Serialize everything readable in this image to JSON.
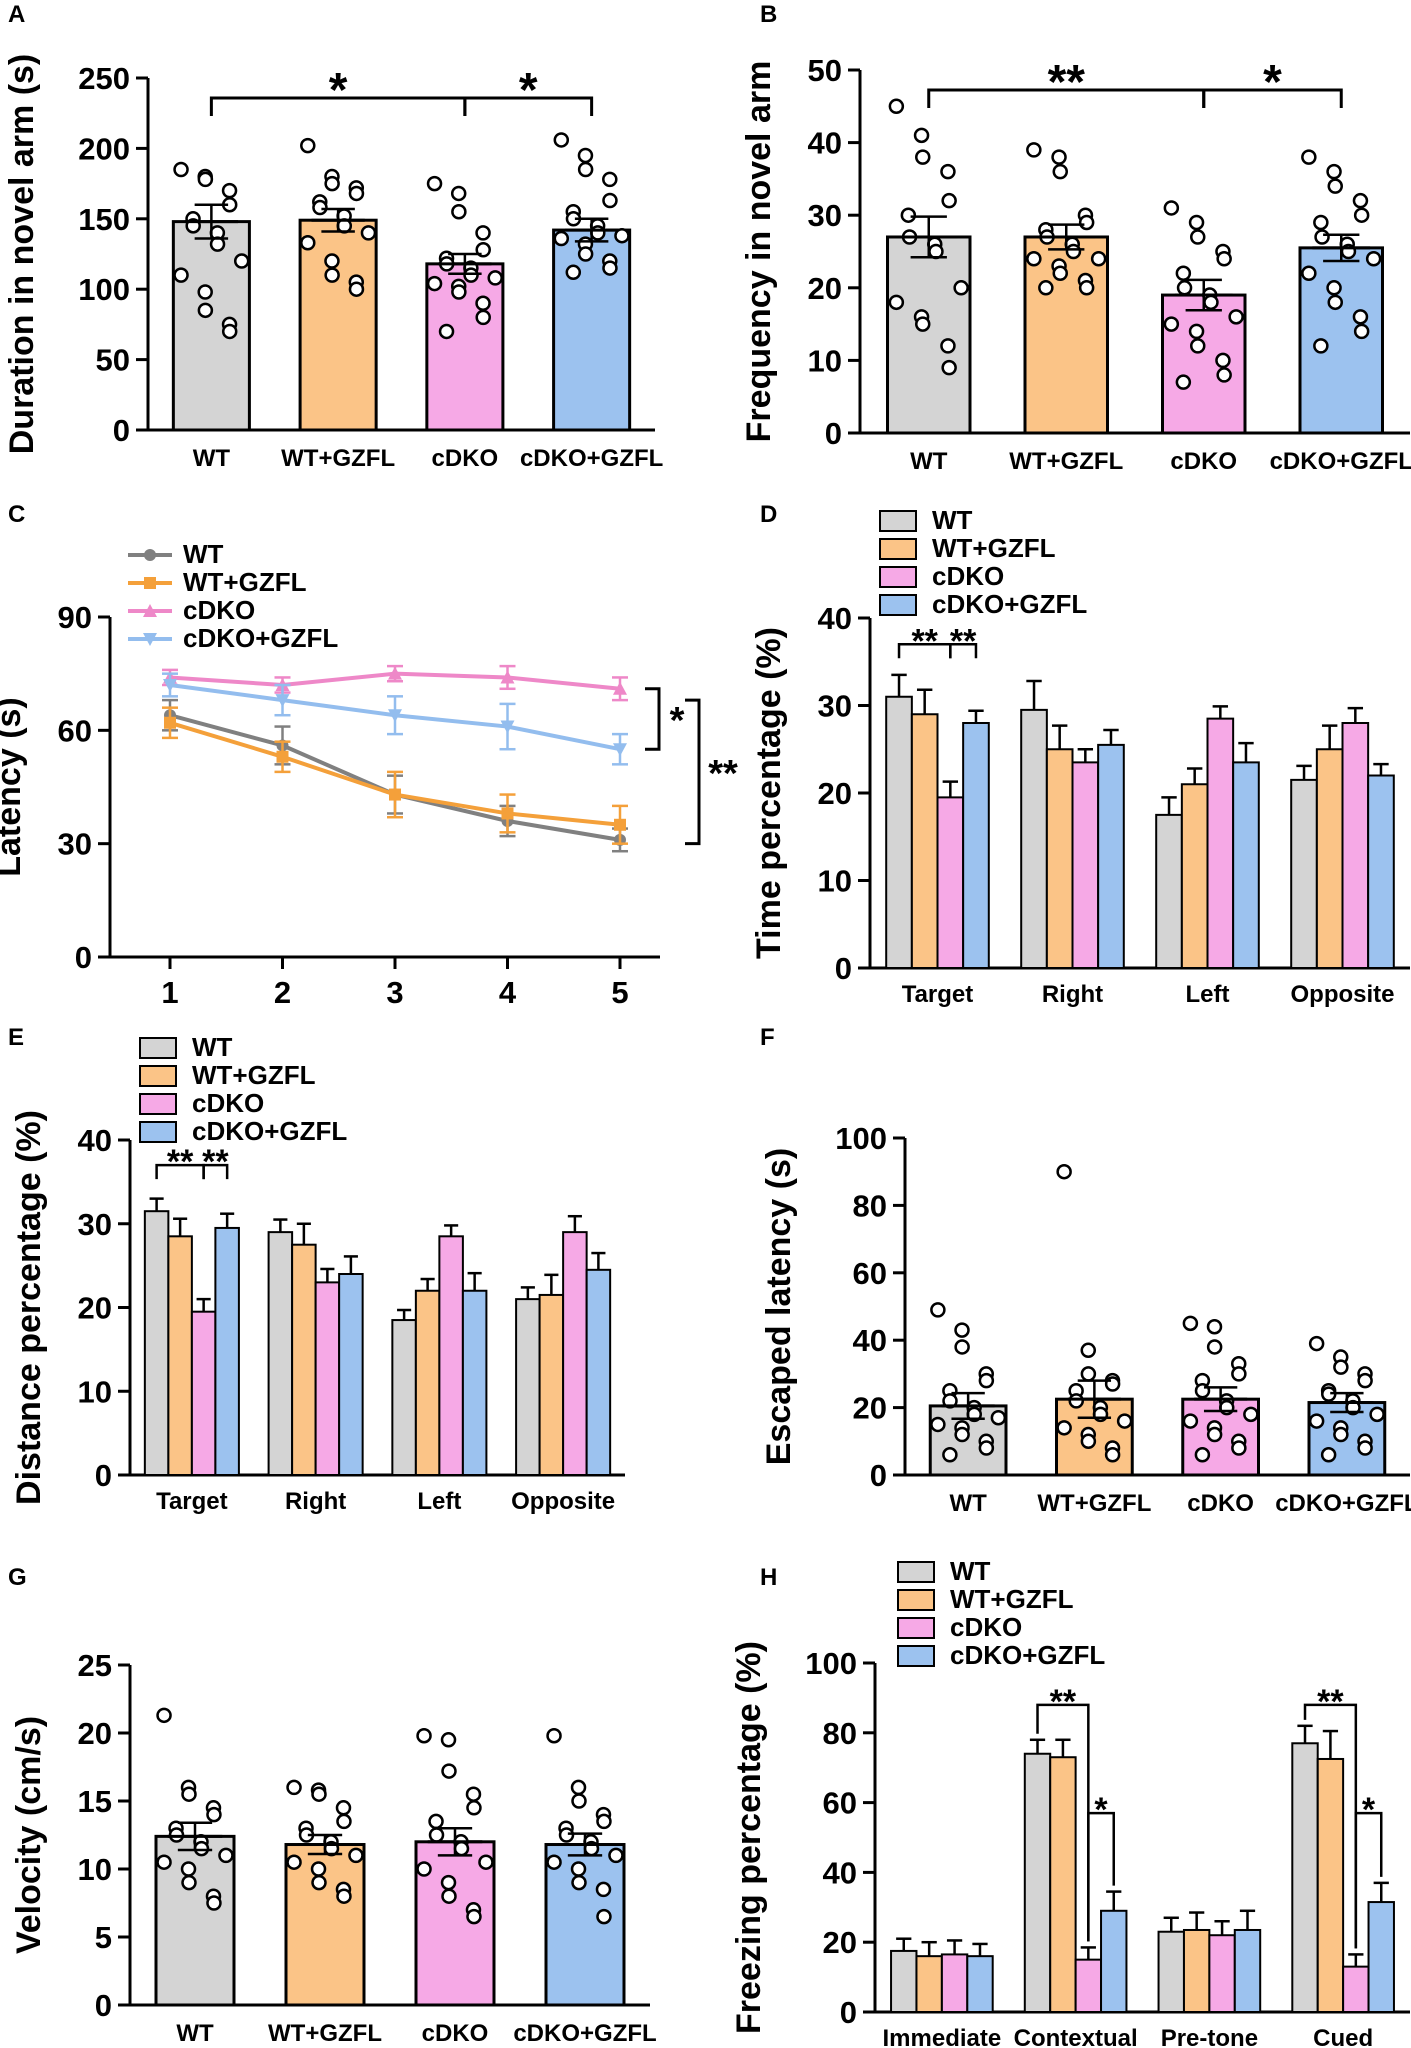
{
  "colors": {
    "WT": "#d4d4d4",
    "WT+GZFL": "#fbc487",
    "cDKO": "#f6a9e6",
    "cDKO+GZFL": "#9cc2ef",
    "line_WT": "#808080",
    "line_WT+GZFL": "#f4a03a",
    "line_cDKO": "#ee88c8",
    "line_cDKO+GZFL": "#93bdee"
  },
  "groups": [
    "WT",
    "WT+GZFL",
    "cDKO",
    "cDKO+GZFL"
  ],
  "quadrant_categories": [
    "Target",
    "Right",
    "Left",
    "Opposite"
  ],
  "chart_data": [
    {
      "id": "A",
      "type": "bar",
      "panel_label": "A",
      "categories": [
        "WT",
        "WT+GZFL",
        "cDKO",
        "cDKO+GZFL"
      ],
      "values": [
        148,
        149,
        118,
        142
      ],
      "errors": [
        12,
        8,
        7,
        8
      ],
      "ylabel": "Duration in novel arm (s)",
      "xlabel": "",
      "ylim": [
        0,
        250
      ],
      "yticks": [
        "0",
        "50",
        "100",
        "150",
        "200",
        "250"
      ],
      "points": [
        [
          185,
          180,
          178,
          170,
          160,
          150,
          145,
          140,
          132,
          120,
          110,
          98,
          85,
          75,
          70
        ],
        [
          202,
          180,
          175,
          172,
          168,
          162,
          158,
          152,
          145,
          140,
          133,
          120,
          110,
          105,
          100
        ],
        [
          175,
          168,
          155,
          140,
          128,
          122,
          118,
          115,
          110,
          108,
          104,
          102,
          98,
          90,
          80,
          70
        ],
        [
          206,
          195,
          185,
          178,
          163,
          155,
          150,
          145,
          140,
          138,
          136,
          132,
          125,
          120,
          115,
          112
        ]
      ],
      "significance": [
        {
          "from": 0,
          "to": 2,
          "label": "*"
        },
        {
          "from": 2,
          "to": 3,
          "label": "*"
        }
      ]
    },
    {
      "id": "B",
      "type": "bar",
      "panel_label": "B",
      "categories": [
        "WT",
        "WT+GZFL",
        "cDKO",
        "cDKO+GZFL"
      ],
      "values": [
        27,
        27,
        19,
        25.5
      ],
      "errors": [
        2.8,
        1.7,
        2.1,
        1.8
      ],
      "ylabel": "Frequency in novel arm",
      "xlabel": "",
      "ylim": [
        0,
        50
      ],
      "yticks": [
        "0",
        "10",
        "20",
        "30",
        "40",
        "50"
      ],
      "points": [
        [
          45,
          41,
          38,
          36,
          32,
          30,
          27,
          26,
          25,
          20,
          18,
          16,
          15,
          12,
          9
        ],
        [
          39,
          38,
          36,
          30,
          29,
          28,
          27,
          26,
          25,
          24,
          24,
          23,
          22,
          21,
          20,
          20
        ],
        [
          31,
          29,
          27,
          25,
          24,
          22,
          20,
          19,
          18,
          16,
          15,
          14,
          12,
          10,
          8,
          7
        ],
        [
          38,
          36,
          34,
          32,
          30,
          29,
          27,
          26,
          25,
          24,
          22,
          20,
          18,
          16,
          14,
          12
        ]
      ],
      "significance": [
        {
          "from": 0,
          "to": 2,
          "label": "**"
        },
        {
          "from": 2,
          "to": 3,
          "label": "*"
        }
      ]
    },
    {
      "id": "C",
      "type": "line",
      "panel_label": "C",
      "x": [
        1,
        2,
        3,
        4,
        5
      ],
      "xticks": [
        "1",
        "2",
        "3",
        "4",
        "5"
      ],
      "series": [
        {
          "name": "WT",
          "values": [
            64,
            56,
            43,
            36,
            31
          ],
          "errors": [
            4,
            5,
            5,
            4,
            3
          ],
          "marker": "circle"
        },
        {
          "name": "WT+GZFL",
          "values": [
            62,
            53,
            43,
            38,
            35
          ],
          "errors": [
            4,
            4,
            6,
            5,
            5
          ],
          "marker": "square"
        },
        {
          "name": "cDKO",
          "values": [
            74,
            72,
            75,
            74,
            71
          ],
          "errors": [
            2,
            2,
            2,
            3,
            3
          ],
          "marker": "triangle-up"
        },
        {
          "name": "cDKO+GZFL",
          "values": [
            72,
            68,
            64,
            61,
            55
          ],
          "errors": [
            3,
            4,
            5,
            6,
            4
          ],
          "marker": "triangle-down"
        }
      ],
      "ylabel": "Latency (s)",
      "xlabel": "",
      "ylim": [
        0,
        90
      ],
      "yticks": [
        "0",
        "30",
        "60",
        "90"
      ],
      "significance": [
        {
          "label": "*",
          "y": [
            71,
            55
          ]
        },
        {
          "label": "**",
          "y": [
            68,
            30
          ]
        }
      ]
    },
    {
      "id": "D",
      "type": "bar",
      "panel_label": "D",
      "categories": [
        "Target",
        "Right",
        "Left",
        "Opposite"
      ],
      "series": [
        {
          "name": "WT",
          "values": [
            31,
            29.5,
            17.5,
            21.5
          ],
          "errors": [
            2.5,
            3.3,
            2.0,
            1.6
          ]
        },
        {
          "name": "WT+GZFL",
          "values": [
            29,
            25,
            21,
            25
          ],
          "errors": [
            2.8,
            2.7,
            1.8,
            2.7
          ]
        },
        {
          "name": "cDKO",
          "values": [
            19.5,
            23.5,
            28.5,
            28
          ],
          "errors": [
            1.8,
            1.5,
            1.4,
            1.7
          ]
        },
        {
          "name": "cDKO+GZFL",
          "values": [
            28,
            25.5,
            23.5,
            22
          ],
          "errors": [
            1.4,
            1.7,
            2.2,
            1.3
          ]
        }
      ],
      "ylabel": "Time percentage (%)",
      "xlabel": "",
      "ylim": [
        0,
        40
      ],
      "yticks": [
        "0",
        "10",
        "20",
        "30",
        "40"
      ],
      "significance": [
        {
          "category": 0,
          "from": 0,
          "to": 2,
          "label": "**"
        },
        {
          "category": 0,
          "from": 2,
          "to": 3,
          "label": "**"
        }
      ]
    },
    {
      "id": "E",
      "type": "bar",
      "panel_label": "E",
      "categories": [
        "Target",
        "Right",
        "Left",
        "Opposite"
      ],
      "series": [
        {
          "name": "WT",
          "values": [
            31.5,
            29,
            18.5,
            21
          ],
          "errors": [
            1.5,
            1.5,
            1.2,
            1.4
          ]
        },
        {
          "name": "WT+GZFL",
          "values": [
            28.5,
            27.5,
            22,
            21.5
          ],
          "errors": [
            2.1,
            2.5,
            1.4,
            2.4
          ]
        },
        {
          "name": "cDKO",
          "values": [
            19.5,
            23,
            28.5,
            29
          ],
          "errors": [
            1.5,
            1.6,
            1.3,
            1.9
          ]
        },
        {
          "name": "cDKO+GZFL",
          "values": [
            29.5,
            24,
            22,
            24.5
          ],
          "errors": [
            1.7,
            2.1,
            2.1,
            2.0
          ]
        }
      ],
      "ylabel": "Distance percentage (%)",
      "xlabel": "",
      "ylim": [
        0,
        40
      ],
      "yticks": [
        "0",
        "10",
        "20",
        "30",
        "40"
      ],
      "significance": [
        {
          "category": 0,
          "from": 0,
          "to": 2,
          "label": "**"
        },
        {
          "category": 0,
          "from": 2,
          "to": 3,
          "label": "**"
        }
      ]
    },
    {
      "id": "F",
      "type": "bar",
      "panel_label": "F",
      "categories": [
        "WT",
        "WT+GZFL",
        "cDKO",
        "cDKO+GZFL"
      ],
      "values": [
        20.5,
        22.5,
        22.5,
        21.5
      ],
      "errors": [
        3.8,
        5.5,
        3.5,
        2.8
      ],
      "ylabel": "Escaped latency (s)",
      "xlabel": "",
      "ylim": [
        0,
        100
      ],
      "yticks": [
        "0",
        "20",
        "40",
        "60",
        "80",
        "100"
      ],
      "points": [
        [
          49,
          43,
          38,
          30,
          28,
          25,
          22,
          20,
          18,
          17,
          15,
          14,
          12,
          10,
          8,
          6
        ],
        [
          90,
          37,
          30,
          28,
          27,
          25,
          22,
          20,
          18,
          16,
          14,
          12,
          10,
          8,
          6
        ],
        [
          45,
          44,
          38,
          33,
          30,
          28,
          25,
          22,
          20,
          18,
          16,
          14,
          12,
          10,
          8,
          6
        ],
        [
          39,
          35,
          32,
          30,
          28,
          25,
          24,
          22,
          20,
          18,
          16,
          14,
          12,
          10,
          8,
          6
        ]
      ]
    },
    {
      "id": "G",
      "type": "bar",
      "panel_label": "G",
      "categories": [
        "WT",
        "WT+GZFL",
        "cDKO",
        "cDKO+GZFL"
      ],
      "values": [
        12.4,
        11.8,
        12,
        11.8
      ],
      "errors": [
        1.0,
        0.7,
        1.0,
        0.8
      ],
      "ylabel": "Velocity (cm/s)",
      "xlabel": "",
      "ylim": [
        0,
        25
      ],
      "yticks": [
        "0",
        "5",
        "10",
        "15",
        "20",
        "25"
      ],
      "points": [
        [
          21.3,
          16,
          15.5,
          14.5,
          14,
          13,
          12.5,
          12,
          11.5,
          11,
          10.5,
          10,
          9,
          8,
          7.5
        ],
        [
          16,
          15.8,
          15.5,
          14.5,
          13.5,
          13,
          12.5,
          12,
          11.5,
          11,
          10.5,
          10,
          9,
          8.5,
          8
        ],
        [
          19.8,
          19.5,
          17.2,
          15.5,
          14.5,
          13.5,
          12.5,
          12,
          11.5,
          10.5,
          10,
          9,
          8,
          7,
          6.5
        ],
        [
          19.8,
          16,
          15,
          14,
          13.5,
          13,
          12.5,
          12,
          11.5,
          11,
          10.5,
          10,
          9,
          8.5,
          6.5
        ]
      ]
    },
    {
      "id": "H",
      "type": "bar",
      "panel_label": "H",
      "categories": [
        "Immediate",
        "Contextual",
        "Pre-tone",
        "Cued"
      ],
      "series": [
        {
          "name": "WT",
          "values": [
            17.5,
            74,
            23,
            77
          ],
          "errors": [
            3.5,
            4,
            4,
            5
          ]
        },
        {
          "name": "WT+GZFL",
          "values": [
            16,
            73,
            23.5,
            72.5
          ],
          "errors": [
            4,
            5,
            5,
            8
          ]
        },
        {
          "name": "cDKO",
          "values": [
            16.5,
            15,
            22,
            13
          ],
          "errors": [
            4,
            3.5,
            4,
            3.5
          ]
        },
        {
          "name": "cDKO+GZFL",
          "values": [
            16,
            29,
            23.5,
            31.5
          ],
          "errors": [
            3.5,
            5.5,
            5.5,
            5.5
          ]
        }
      ],
      "ylabel": "Freezing percentage (%)",
      "xlabel": "",
      "ylim": [
        0,
        100
      ],
      "yticks": [
        "0",
        "20",
        "40",
        "60",
        "80",
        "100"
      ],
      "significance": [
        {
          "category": 1,
          "from": 0,
          "to": 2,
          "label": "**"
        },
        {
          "category": 1,
          "from": 2,
          "to": 3,
          "label": "*"
        },
        {
          "category": 3,
          "from": 0,
          "to": 2,
          "label": "**"
        },
        {
          "category": 3,
          "from": 2,
          "to": 3,
          "label": "*"
        }
      ]
    }
  ]
}
